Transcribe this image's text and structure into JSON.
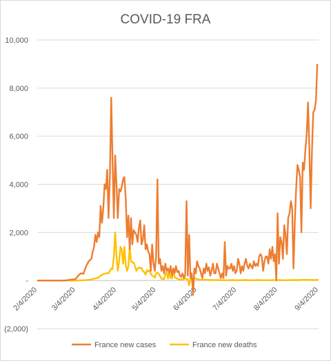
{
  "chart_data": {
    "type": "line",
    "title": "COVID-19 FRA",
    "xlabel": "",
    "ylabel": "",
    "ylim": [
      -2000,
      10000
    ],
    "yticks": [
      -2000,
      0,
      2000,
      4000,
      6000,
      8000,
      10000
    ],
    "ytick_labels": [
      "(2,000)",
      "-",
      "2,000",
      "4,000",
      "6,000",
      "8,000",
      "10,000"
    ],
    "xlim": [
      "2020-02-04",
      "2020-09-04"
    ],
    "xticks": [
      "2020-02-04",
      "2020-03-04",
      "2020-04-04",
      "2020-05-04",
      "2020-06-04",
      "2020-07-04",
      "2020-08-04",
      "2020-09-04"
    ],
    "xtick_labels": [
      "2/4/2020",
      "3/4/2020",
      "4/4/2020",
      "5/4/2020",
      "6/4/2020",
      "7/4/2020",
      "8/4/2020",
      "9/4/2020"
    ],
    "grid": "horizontal",
    "legend": "bottom",
    "series": [
      {
        "name": "France new cases",
        "color": "#ED7D31",
        "points": [
          [
            "2020-02-04",
            0
          ],
          [
            "2020-02-15",
            0
          ],
          [
            "2020-02-25",
            0
          ],
          [
            "2020-03-01",
            40
          ],
          [
            "2020-03-04",
            60
          ],
          [
            "2020-03-06",
            200
          ],
          [
            "2020-03-08",
            300
          ],
          [
            "2020-03-10",
            280
          ],
          [
            "2020-03-12",
            600
          ],
          [
            "2020-03-14",
            800
          ],
          [
            "2020-03-16",
            900
          ],
          [
            "2020-03-17",
            1200
          ],
          [
            "2020-03-18",
            1400
          ],
          [
            "2020-03-19",
            1900
          ],
          [
            "2020-03-20",
            1600
          ],
          [
            "2020-03-21",
            2000
          ],
          [
            "2020-03-22",
            1800
          ],
          [
            "2020-03-23",
            3100
          ],
          [
            "2020-03-24",
            2400
          ],
          [
            "2020-03-25",
            3000
          ],
          [
            "2020-03-26",
            4000
          ],
          [
            "2020-03-27",
            3800
          ],
          [
            "2020-03-28",
            4600
          ],
          [
            "2020-03-29",
            2600
          ],
          [
            "2020-03-30",
            4400
          ],
          [
            "2020-03-31",
            7600
          ],
          [
            "2020-04-01",
            5000
          ],
          [
            "2020-04-02",
            2600
          ],
          [
            "2020-04-03",
            5200
          ],
          [
            "2020-04-04",
            4000
          ],
          [
            "2020-04-05",
            2600
          ],
          [
            "2020-04-06",
            3800
          ],
          [
            "2020-04-07",
            3700
          ],
          [
            "2020-04-08",
            3900
          ],
          [
            "2020-04-09",
            4200
          ],
          [
            "2020-04-10",
            4300
          ],
          [
            "2020-04-11",
            3400
          ],
          [
            "2020-04-12",
            1800
          ],
          [
            "2020-04-13",
            2700
          ],
          [
            "2020-04-14",
            1300
          ],
          [
            "2020-04-15",
            2600
          ],
          [
            "2020-04-16",
            1500
          ],
          [
            "2020-04-17",
            2100
          ],
          [
            "2020-04-18",
            2000
          ],
          [
            "2020-04-19",
            1900
          ],
          [
            "2020-04-20",
            1600
          ],
          [
            "2020-04-21",
            2200
          ],
          [
            "2020-04-22",
            2500
          ],
          [
            "2020-04-23",
            1500
          ],
          [
            "2020-04-24",
            1700
          ],
          [
            "2020-04-25",
            2300
          ],
          [
            "2020-04-26",
            1300
          ],
          [
            "2020-04-27",
            1500
          ],
          [
            "2020-04-28",
            1200
          ],
          [
            "2020-04-29",
            1100
          ],
          [
            "2020-04-30",
            400
          ],
          [
            "2020-05-01",
            1500
          ],
          [
            "2020-05-02",
            700
          ],
          [
            "2020-05-03",
            400
          ],
          [
            "2020-05-04",
            1000
          ],
          [
            "2020-05-05",
            4200
          ],
          [
            "2020-05-06",
            700
          ],
          [
            "2020-05-07",
            900
          ],
          [
            "2020-05-08",
            400
          ],
          [
            "2020-05-09",
            600
          ],
          [
            "2020-05-10",
            300
          ],
          [
            "2020-05-11",
            700
          ],
          [
            "2020-05-12",
            400
          ],
          [
            "2020-05-13",
            500
          ],
          [
            "2020-05-14",
            300
          ],
          [
            "2020-05-15",
            600
          ],
          [
            "2020-05-16",
            200
          ],
          [
            "2020-05-17",
            500
          ],
          [
            "2020-05-18",
            300
          ],
          [
            "2020-05-19",
            600
          ],
          [
            "2020-05-20",
            350
          ],
          [
            "2020-05-21",
            400
          ],
          [
            "2020-05-22",
            200
          ],
          [
            "2020-05-23",
            150
          ],
          [
            "2020-05-24",
            300
          ],
          [
            "2020-05-25",
            100
          ],
          [
            "2020-05-26",
            200
          ],
          [
            "2020-05-27",
            3300
          ],
          [
            "2020-05-28",
            200
          ],
          [
            "2020-05-29",
            1900
          ],
          [
            "2020-05-30",
            100
          ],
          [
            "2020-05-31",
            300
          ],
          [
            "2020-06-01",
            -600
          ],
          [
            "2020-06-02",
            500
          ],
          [
            "2020-06-03",
            300
          ],
          [
            "2020-06-04",
            800
          ],
          [
            "2020-06-05",
            600
          ],
          [
            "2020-06-06",
            500
          ],
          [
            "2020-06-07",
            300
          ],
          [
            "2020-06-08",
            100
          ],
          [
            "2020-06-09",
            500
          ],
          [
            "2020-06-10",
            300
          ],
          [
            "2020-06-11",
            700
          ],
          [
            "2020-06-12",
            400
          ],
          [
            "2020-06-13",
            550
          ],
          [
            "2020-06-14",
            200
          ],
          [
            "2020-06-15",
            400
          ],
          [
            "2020-06-16",
            700
          ],
          [
            "2020-06-17",
            300
          ],
          [
            "2020-06-18",
            300
          ],
          [
            "2020-06-19",
            700
          ],
          [
            "2020-06-20",
            500
          ],
          [
            "2020-06-21",
            300
          ],
          [
            "2020-06-22",
            100
          ],
          [
            "2020-06-23",
            300
          ],
          [
            "2020-06-24",
            100
          ],
          [
            "2020-06-25",
            1600
          ],
          [
            "2020-06-26",
            200
          ],
          [
            "2020-06-27",
            600
          ],
          [
            "2020-06-28",
            500
          ],
          [
            "2020-06-29",
            500
          ],
          [
            "2020-06-30",
            700
          ],
          [
            "2020-07-01",
            400
          ],
          [
            "2020-07-02",
            600
          ],
          [
            "2020-07-03",
            300
          ],
          [
            "2020-07-04",
            400
          ],
          [
            "2020-07-05",
            900
          ],
          [
            "2020-07-06",
            700
          ],
          [
            "2020-07-07",
            300
          ],
          [
            "2020-07-08",
            600
          ],
          [
            "2020-07-09",
            400
          ],
          [
            "2020-07-10",
            700
          ],
          [
            "2020-07-11",
            900
          ],
          [
            "2020-07-12",
            600
          ],
          [
            "2020-07-13",
            500
          ],
          [
            "2020-07-14",
            700
          ],
          [
            "2020-07-15",
            600
          ],
          [
            "2020-07-16",
            500
          ],
          [
            "2020-07-17",
            800
          ],
          [
            "2020-07-18",
            600
          ],
          [
            "2020-07-19",
            700
          ],
          [
            "2020-07-20",
            600
          ],
          [
            "2020-07-21",
            1000
          ],
          [
            "2020-07-22",
            1100
          ],
          [
            "2020-07-23",
            1000
          ],
          [
            "2020-07-24",
            400
          ],
          [
            "2020-07-25",
            800
          ],
          [
            "2020-07-26",
            1000
          ],
          [
            "2020-07-27",
            1000
          ],
          [
            "2020-07-28",
            700
          ],
          [
            "2020-07-29",
            1300
          ],
          [
            "2020-07-30",
            900
          ],
          [
            "2020-07-31",
            1400
          ],
          [
            "2020-08-01",
            800
          ],
          [
            "2020-08-02",
            1100
          ],
          [
            "2020-08-03",
            0
          ],
          [
            "2020-08-04",
            2800
          ],
          [
            "2020-08-05",
            700
          ],
          [
            "2020-08-06",
            1800
          ],
          [
            "2020-08-07",
            1600
          ],
          [
            "2020-08-08",
            900
          ],
          [
            "2020-08-09",
            2300
          ],
          [
            "2020-08-10",
            1900
          ],
          [
            "2020-08-11",
            1100
          ],
          [
            "2020-08-12",
            2600
          ],
          [
            "2020-08-13",
            2800
          ],
          [
            "2020-08-14",
            3300
          ],
          [
            "2020-08-15",
            3000
          ],
          [
            "2020-08-16",
            500
          ],
          [
            "2020-08-17",
            2400
          ],
          [
            "2020-08-18",
            3800
          ],
          [
            "2020-08-19",
            4800
          ],
          [
            "2020-08-20",
            4600
          ],
          [
            "2020-08-21",
            4300
          ],
          [
            "2020-08-22",
            2000
          ],
          [
            "2020-08-23",
            4900
          ],
          [
            "2020-08-24",
            4600
          ],
          [
            "2020-08-25",
            5400
          ],
          [
            "2020-08-26",
            6100
          ],
          [
            "2020-08-27",
            7400
          ],
          [
            "2020-08-28",
            5500
          ],
          [
            "2020-08-29",
            3000
          ],
          [
            "2020-08-30",
            5400
          ],
          [
            "2020-08-31",
            7000
          ],
          [
            "2020-09-01",
            7100
          ],
          [
            "2020-09-02",
            7500
          ],
          [
            "2020-09-03",
            9000
          ]
        ]
      },
      {
        "name": "France new deaths",
        "color": "#FFC000",
        "points": [
          [
            "2020-02-04",
            0
          ],
          [
            "2020-03-04",
            0
          ],
          [
            "2020-03-10",
            10
          ],
          [
            "2020-03-15",
            30
          ],
          [
            "2020-03-18",
            80
          ],
          [
            "2020-03-21",
            110
          ],
          [
            "2020-03-24",
            240
          ],
          [
            "2020-03-27",
            300
          ],
          [
            "2020-03-29",
            300
          ],
          [
            "2020-03-30",
            400
          ],
          [
            "2020-03-31",
            500
          ],
          [
            "2020-04-01",
            470
          ],
          [
            "2020-04-02",
            1000
          ],
          [
            "2020-04-03",
            2000
          ],
          [
            "2020-04-04",
            1050
          ],
          [
            "2020-04-05",
            400
          ],
          [
            "2020-04-06",
            800
          ],
          [
            "2020-04-07",
            1400
          ],
          [
            "2020-04-08",
            1300
          ],
          [
            "2020-04-09",
            700
          ],
          [
            "2020-04-10",
            1400
          ],
          [
            "2020-04-11",
            650
          ],
          [
            "2020-04-12",
            400
          ],
          [
            "2020-04-13",
            600
          ],
          [
            "2020-04-14",
            1400
          ],
          [
            "2020-04-15",
            800
          ],
          [
            "2020-04-16",
            750
          ],
          [
            "2020-04-17",
            750
          ],
          [
            "2020-04-18",
            600
          ],
          [
            "2020-04-19",
            400
          ],
          [
            "2020-04-20",
            500
          ],
          [
            "2020-04-21",
            550
          ],
          [
            "2020-04-22",
            500
          ],
          [
            "2020-04-23",
            520
          ],
          [
            "2020-04-24",
            380
          ],
          [
            "2020-04-25",
            360
          ],
          [
            "2020-04-26",
            240
          ],
          [
            "2020-04-27",
            430
          ],
          [
            "2020-04-28",
            370
          ],
          [
            "2020-04-29",
            430
          ],
          [
            "2020-04-30",
            290
          ],
          [
            "2020-05-01",
            200
          ],
          [
            "2020-05-02",
            170
          ],
          [
            "2020-05-03",
            120
          ],
          [
            "2020-05-04",
            300
          ],
          [
            "2020-05-05",
            330
          ],
          [
            "2020-05-06",
            280
          ],
          [
            "2020-05-07",
            180
          ],
          [
            "2020-05-08",
            80
          ],
          [
            "2020-05-09",
            60
          ],
          [
            "2020-05-10",
            60
          ],
          [
            "2020-05-11",
            260
          ],
          [
            "2020-05-12",
            350
          ],
          [
            "2020-05-13",
            80
          ],
          [
            "2020-05-14",
            350
          ],
          [
            "2020-05-15",
            100
          ],
          [
            "2020-05-16",
            90
          ],
          [
            "2020-05-17",
            480
          ],
          [
            "2020-05-18",
            130
          ],
          [
            "2020-05-19",
            110
          ],
          [
            "2020-05-20",
            80
          ],
          [
            "2020-05-21",
            60
          ],
          [
            "2020-05-22",
            40
          ],
          [
            "2020-05-23",
            50
          ],
          [
            "2020-05-24",
            30
          ],
          [
            "2020-05-25",
            80
          ],
          [
            "2020-05-26",
            70
          ],
          [
            "2020-05-27",
            60
          ],
          [
            "2020-05-28",
            60
          ],
          [
            "2020-05-29",
            -200
          ],
          [
            "2020-05-30",
            50
          ],
          [
            "2020-05-31",
            30
          ],
          [
            "2020-06-02",
            100
          ],
          [
            "2020-06-05",
            40
          ],
          [
            "2020-06-10",
            30
          ],
          [
            "2020-06-15",
            20
          ],
          [
            "2020-06-20",
            20
          ],
          [
            "2020-06-25",
            10
          ],
          [
            "2020-07-01",
            20
          ],
          [
            "2020-07-05",
            10
          ],
          [
            "2020-07-10",
            20
          ],
          [
            "2020-07-15",
            10
          ],
          [
            "2020-07-20",
            20
          ],
          [
            "2020-07-25",
            10
          ],
          [
            "2020-08-01",
            15
          ],
          [
            "2020-08-05",
            20
          ],
          [
            "2020-08-10",
            10
          ],
          [
            "2020-08-15",
            20
          ],
          [
            "2020-08-20",
            20
          ],
          [
            "2020-08-25",
            30
          ],
          [
            "2020-09-01",
            20
          ],
          [
            "2020-09-04",
            30
          ]
        ]
      }
    ]
  }
}
